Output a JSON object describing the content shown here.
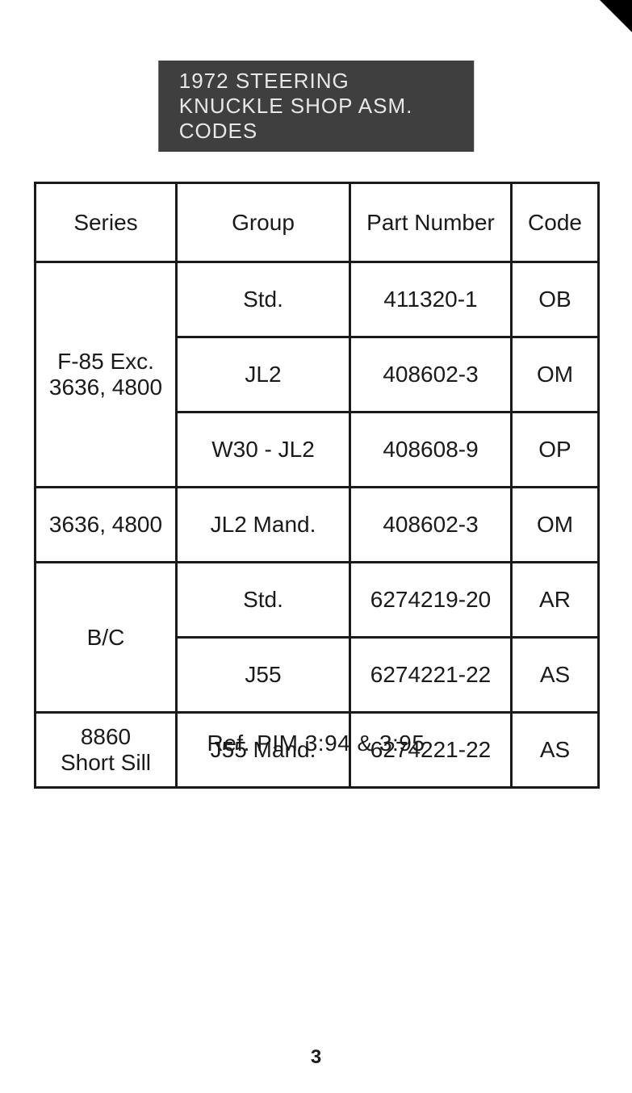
{
  "title": "1972 STEERING KNUCKLE SHOP ASM. CODES",
  "table": {
    "headers": {
      "series": "Series",
      "group": "Group",
      "part": "Part Number",
      "code": "Code"
    },
    "rows": [
      {
        "series": "F-85 Exc.\n3636, 4800",
        "series_rowspan": 3,
        "group": "Std.",
        "part": "411320-1",
        "code": "OB"
      },
      {
        "series": null,
        "series_rowspan": 0,
        "group": "JL2",
        "part": "408602-3",
        "code": "OM"
      },
      {
        "series": null,
        "series_rowspan": 0,
        "group": "W30 - JL2",
        "part": "408608-9",
        "code": "OP"
      },
      {
        "series": "3636, 4800",
        "series_rowspan": 1,
        "group": "JL2  Mand.",
        "part": "408602-3",
        "code": "OM"
      },
      {
        "series": "B/C",
        "series_rowspan": 2,
        "group": "Std.",
        "part": "6274219-20",
        "code": "AR"
      },
      {
        "series": null,
        "series_rowspan": 0,
        "group": "J55",
        "part": "6274221-22",
        "code": "AS"
      },
      {
        "series": "8860\nShort Sill",
        "series_rowspan": 1,
        "group": "J55 Mand.",
        "part": "6274221-22",
        "code": "AS"
      }
    ]
  },
  "reference": "Ref.   PIM 3:94  &  3:95",
  "page_number": "3",
  "colors": {
    "title_bg": "#3f3f3f",
    "title_fg": "#e8e8e8",
    "border": "#1a1a1a",
    "text": "#1a1a1a",
    "page_bg": "#ffffff"
  }
}
